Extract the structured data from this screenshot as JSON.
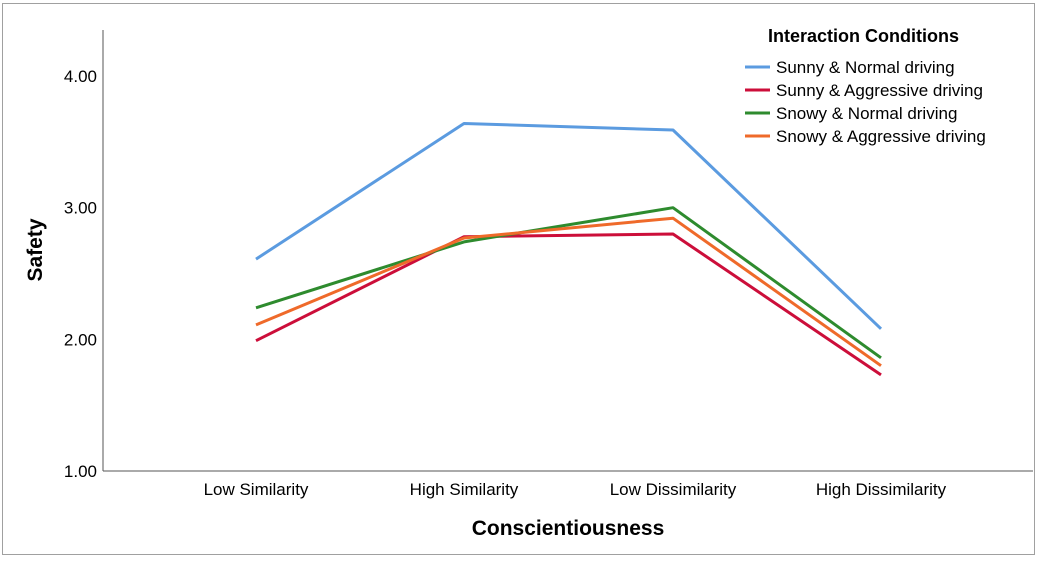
{
  "chart_data": {
    "type": "line",
    "xlabel": "Conscientiousness",
    "ylabel": "Safety",
    "categories": [
      "Low Similarity",
      "High Similarity",
      "Low Dissimilarity",
      "High Dissimilarity"
    ],
    "ylim": [
      1.0,
      4.35
    ],
    "yticks": [
      "1.00",
      "2.00",
      "3.00",
      "4.00"
    ],
    "ytick_values": [
      1,
      2,
      3,
      4
    ],
    "grid": false,
    "legend": {
      "title": "Interaction Conditions",
      "placement": "top-right"
    },
    "series": [
      {
        "name": "Sunny & Normal driving",
        "color": "#5b9be0",
        "values": [
          2.61,
          3.64,
          3.59,
          2.08
        ]
      },
      {
        "name": "Sunny & Aggressive driving",
        "color": "#cc0e3a",
        "values": [
          1.99,
          2.78,
          2.8,
          1.73
        ]
      },
      {
        "name": "Snowy & Normal driving",
        "color": "#2e8b2e",
        "values": [
          2.24,
          2.74,
          3.0,
          1.86
        ]
      },
      {
        "name": "Snowy & Aggressive driving",
        "color": "#ef6a2a",
        "values": [
          2.11,
          2.77,
          2.92,
          1.8
        ]
      }
    ]
  }
}
